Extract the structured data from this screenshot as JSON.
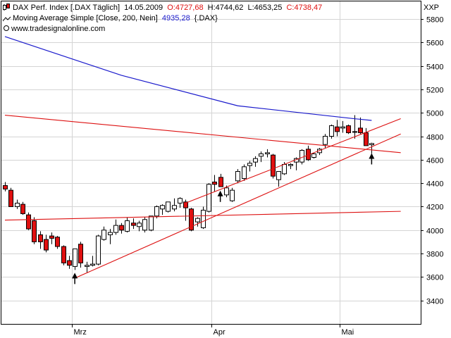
{
  "legend": {
    "line1": {
      "name": "DAX Perf. Index [.DAX  Täglich]",
      "date": "14.05.2009",
      "open": "O:4727,68",
      "high": "H:4744,62",
      "low": "L:4653,25",
      "close": "C:4738,47"
    },
    "line2": {
      "name": "Moving Average Simple [Close, 200, Nein]",
      "value": "4935,28",
      "symbol": "{.DAX}"
    },
    "line3": {
      "text": "www.tradesignalonline.com"
    },
    "currency": "XXP"
  },
  "colors": {
    "up_candle": "#ffffff",
    "down_candle": "#e01010",
    "ma_line": "#1a1acc",
    "trend_line": "#dd1111",
    "grid": "#d4d4d4",
    "frame": "#000000"
  },
  "chart_data": {
    "type": "candlestick",
    "ylim": [
      3200,
      5950
    ],
    "yticks": [
      3400,
      3600,
      3800,
      4000,
      4200,
      4400,
      4600,
      4800,
      5000,
      5200,
      5400,
      5600,
      5800
    ],
    "ytick_labels": [
      "3400",
      "3600",
      "3800",
      "4000",
      "4200",
      "4400",
      "4600",
      "4800",
      "5000",
      "5200",
      "5400",
      "5600",
      "5800"
    ],
    "grid": true,
    "x_labels": [
      {
        "label": "Mrz",
        "index": 11.5
      },
      {
        "label": "Apr",
        "index": 35.5
      },
      {
        "label": "Mai",
        "index": 57.5
      }
    ],
    "candles": [
      [
        4380,
        4410,
        4330,
        4350
      ],
      [
        4340,
        4360,
        4200,
        4200
      ],
      [
        4200,
        4260,
        4180,
        4230
      ],
      [
        4220,
        4240,
        4130,
        4140
      ],
      [
        4130,
        4150,
        4000,
        4010
      ],
      [
        4080,
        4110,
        3880,
        3900
      ],
      [
        3960,
        3990,
        3840,
        3900
      ],
      [
        3920,
        3960,
        3810,
        3830
      ],
      [
        3950,
        3980,
        3880,
        3930
      ],
      [
        3940,
        3950,
        3840,
        3860
      ],
      [
        3860,
        3870,
        3700,
        3720
      ],
      [
        3740,
        3780,
        3670,
        3700
      ],
      [
        3690,
        3840,
        3660,
        3840
      ],
      [
        3880,
        3900,
        3680,
        3720
      ],
      [
        3690,
        3730,
        3640,
        3700
      ],
      [
        3700,
        3780,
        3690,
        3710
      ],
      [
        3710,
        3960,
        3700,
        3950
      ],
      [
        3920,
        4030,
        3910,
        4000
      ],
      [
        3960,
        4010,
        3880,
        3980
      ],
      [
        3980,
        4090,
        3960,
        4040
      ],
      [
        4040,
        4060,
        3970,
        4000
      ],
      [
        3990,
        4110,
        3980,
        4080
      ],
      [
        4060,
        4100,
        4010,
        4040
      ],
      [
        4030,
        4080,
        3990,
        4060
      ],
      [
        4000,
        4110,
        3980,
        4090
      ],
      [
        4000,
        4120,
        3990,
        4120
      ],
      [
        4120,
        4210,
        4100,
        4200
      ],
      [
        4180,
        4220,
        4130,
        4210
      ],
      [
        4160,
        4240,
        4150,
        4240
      ],
      [
        4180,
        4270,
        4160,
        4210
      ],
      [
        4230,
        4280,
        4190,
        4270
      ],
      [
        4240,
        4260,
        4080,
        4190
      ],
      [
        4180,
        4190,
        3990,
        4000
      ],
      [
        4070,
        4110,
        4030,
        4100
      ],
      [
        4020,
        4200,
        4010,
        4170
      ],
      [
        4160,
        4400,
        4150,
        4390
      ],
      [
        4410,
        4470,
        4330,
        4390
      ],
      [
        4450,
        4480,
        4370,
        4370
      ],
      [
        4300,
        4380,
        4280,
        4360
      ],
      [
        4250,
        4360,
        4240,
        4340
      ],
      [
        4420,
        4520,
        4400,
        4500
      ],
      [
        4440,
        4560,
        4420,
        4540
      ],
      [
        4550,
        4590,
        4500,
        4570
      ],
      [
        4580,
        4630,
        4540,
        4610
      ],
      [
        4630,
        4670,
        4580,
        4650
      ],
      [
        4650,
        4690,
        4620,
        4660
      ],
      [
        4640,
        4650,
        4440,
        4460
      ],
      [
        4430,
        4500,
        4370,
        4500
      ],
      [
        4480,
        4580,
        4470,
        4560
      ],
      [
        4550,
        4570,
        4520,
        4560
      ],
      [
        4580,
        4620,
        4510,
        4610
      ],
      [
        4580,
        4690,
        4560,
        4680
      ],
      [
        4690,
        4720,
        4590,
        4600
      ],
      [
        4620,
        4660,
        4610,
        4650
      ],
      [
        4660,
        4700,
        4640,
        4690
      ],
      [
        4730,
        4820,
        4700,
        4800
      ],
      [
        4800,
        4900,
        4780,
        4890
      ],
      [
        4880,
        4940,
        4800,
        4840
      ],
      [
        4870,
        4930,
        4830,
        4880
      ],
      [
        4890,
        4900,
        4820,
        4830
      ],
      [
        4840,
        4980,
        4780,
        4840
      ],
      [
        4870,
        4960,
        4820,
        4830
      ],
      [
        4830,
        4870,
        4730,
        4720
      ],
      [
        4727.68,
        4744.62,
        4653.25,
        4738.47
      ]
    ],
    "moving_average": {
      "name": "Moving Average Simple [Close, 200, Nein]",
      "points": [
        [
          0,
          5650
        ],
        [
          20,
          5320
        ],
        [
          40,
          5060
        ],
        [
          60,
          4950
        ],
        [
          63,
          4935.28
        ]
      ]
    },
    "trend_lines": [
      {
        "from": [
          0,
          4980
        ],
        "to": [
          68,
          4660
        ]
      },
      {
        "from": [
          0,
          4085
        ],
        "to": [
          68,
          4160
        ]
      },
      {
        "from": [
          12,
          3590
        ],
        "to": [
          68,
          4820
        ]
      },
      {
        "from": [
          31,
          4230
        ],
        "to": [
          68,
          4950
        ]
      }
    ],
    "arrows": [
      {
        "index": 12,
        "price": 3540
      },
      {
        "index": 37,
        "price": 4240
      },
      {
        "index": 63,
        "price": 4560
      }
    ]
  }
}
